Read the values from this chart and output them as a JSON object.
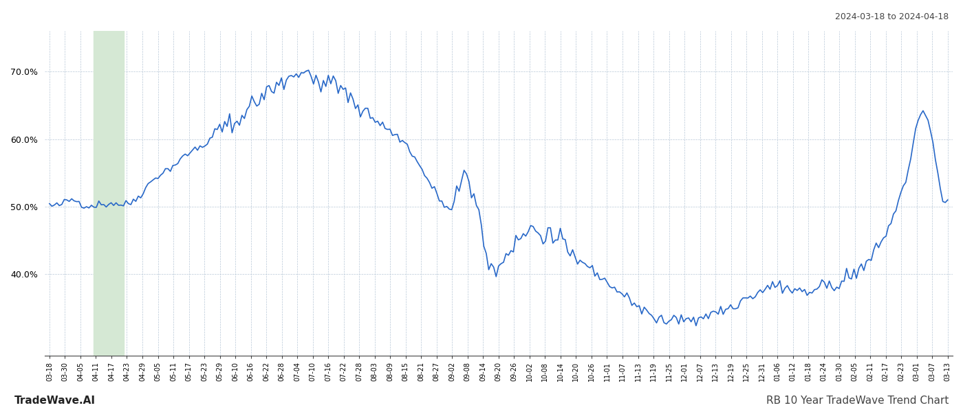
{
  "title_top_right": "2024-03-18 to 2024-04-18",
  "title_bottom_right": "RB 10 Year TradeWave Trend Chart",
  "title_bottom_left": "TradeWave.AI",
  "line_color": "#2868c8",
  "line_width": 1.2,
  "background_color": "#ffffff",
  "grid_color": "#b8c8d8",
  "highlight_color": "#d5e8d4",
  "y_ticks": [
    0.4,
    0.5,
    0.6,
    0.7
  ],
  "ylim": [
    0.28,
    0.76
  ],
  "x_labels": [
    "03-18",
    "03-30",
    "04-05",
    "04-11",
    "04-17",
    "04-23",
    "04-29",
    "05-05",
    "05-11",
    "05-17",
    "05-23",
    "05-29",
    "06-10",
    "06-16",
    "06-22",
    "06-28",
    "07-04",
    "07-10",
    "07-16",
    "07-22",
    "07-28",
    "08-03",
    "08-09",
    "08-15",
    "08-21",
    "08-27",
    "09-02",
    "09-08",
    "09-14",
    "09-20",
    "09-26",
    "10-02",
    "10-08",
    "10-14",
    "10-20",
    "10-26",
    "11-01",
    "11-07",
    "11-13",
    "11-19",
    "11-25",
    "12-01",
    "12-07",
    "12-13",
    "12-19",
    "12-25",
    "12-31",
    "01-06",
    "01-12",
    "01-18",
    "01-24",
    "01-30",
    "02-05",
    "02-11",
    "02-17",
    "02-23",
    "03-01",
    "03-07",
    "03-13"
  ],
  "highlight_x_start_label": "04-05",
  "highlight_x_end_label": "04-17",
  "n_data_points": 365,
  "seed": 42
}
